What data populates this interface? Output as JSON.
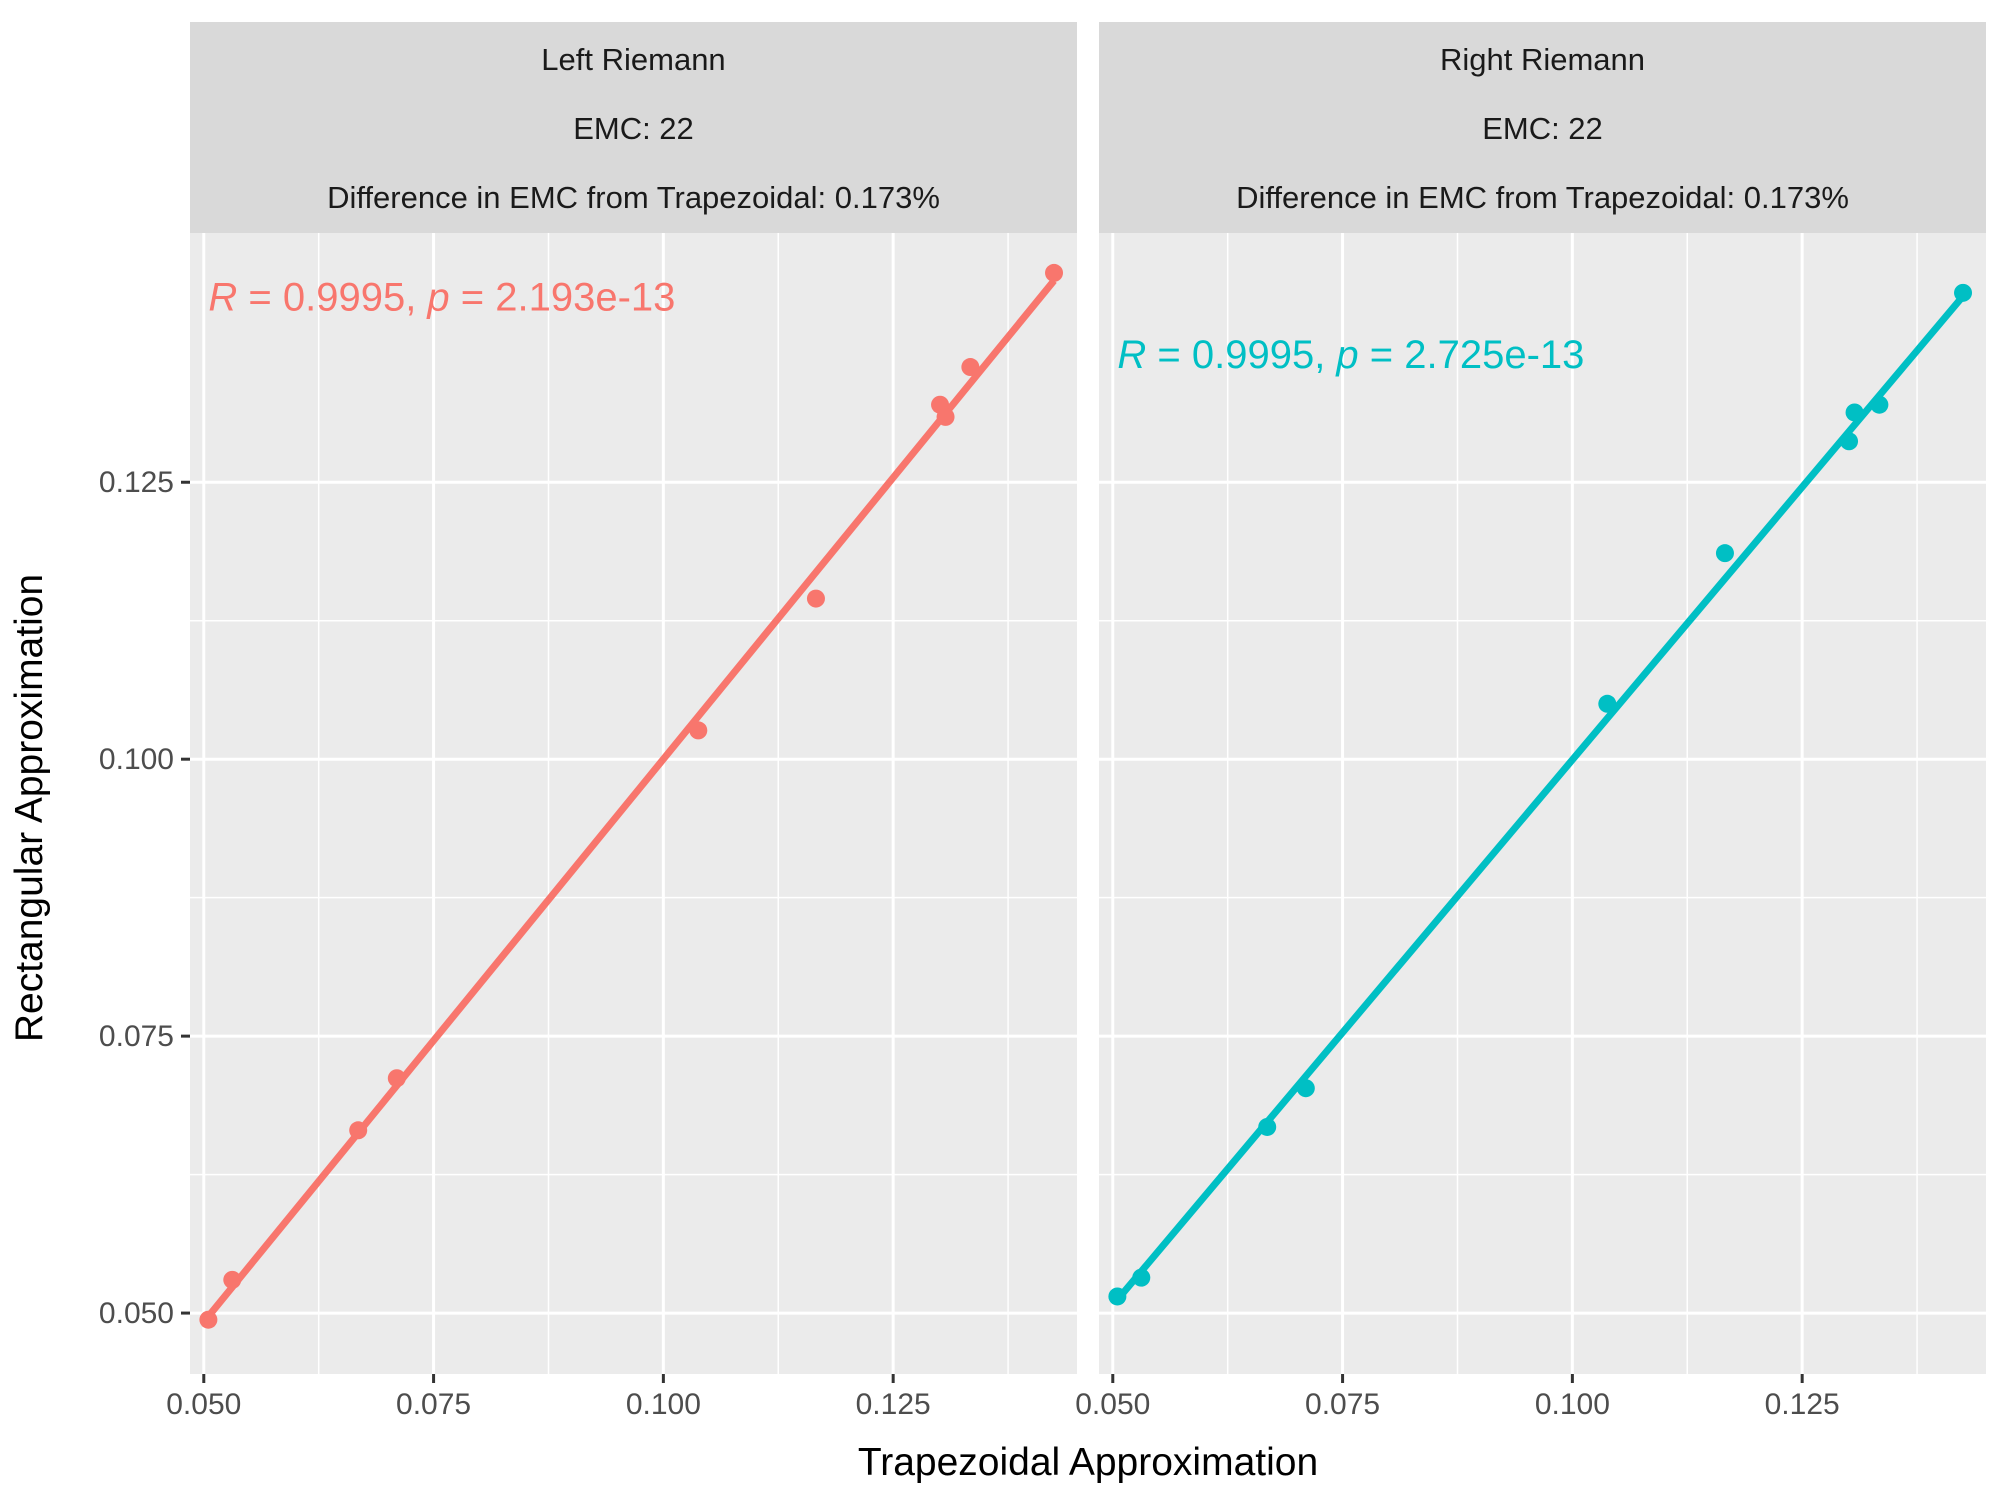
{
  "chart_data": {
    "type": "scatter",
    "xlabel": "Trapezoidal Approximation",
    "ylabel": "Rectangular Approximation",
    "xlim": [
      0.0485,
      0.145
    ],
    "ylim": [
      0.0445,
      0.1475
    ],
    "x_ticks": [
      0.05,
      0.075,
      0.1,
      0.125
    ],
    "x_tick_labels": [
      "0.050",
      "0.075",
      "0.100",
      "0.125"
    ],
    "y_ticks": [
      0.05,
      0.075,
      0.1,
      0.125
    ],
    "y_tick_labels": [
      "0.050",
      "0.075",
      "0.100",
      "0.125"
    ],
    "grid": true,
    "panels": [
      {
        "strip": [
          "Left Riemann",
          "EMC: 22",
          "Difference in EMC from Trapezoidal: 0.173%"
        ],
        "color": "#F8766D",
        "stat": {
          "r_symbol": "R",
          "r_value": " = 0.9995, ",
          "p_symbol": "p",
          "p_value": " = 2.193e-13"
        },
        "stat_anchor": [
          0.0505,
          0.1405
        ],
        "points": [
          {
            "x": 0.0505,
            "y": 0.0494
          },
          {
            "x": 0.0531,
            "y": 0.053
          },
          {
            "x": 0.0668,
            "y": 0.0665
          },
          {
            "x": 0.071,
            "y": 0.0712
          },
          {
            "x": 0.1038,
            "y": 0.1026
          },
          {
            "x": 0.1166,
            "y": 0.1145
          },
          {
            "x": 0.1301,
            "y": 0.132
          },
          {
            "x": 0.1307,
            "y": 0.1309
          },
          {
            "x": 0.1334,
            "y": 0.1354
          },
          {
            "x": 0.1425,
            "y": 0.1439
          }
        ],
        "fit": {
          "x": [
            0.0505,
            0.1425
          ],
          "y": [
            0.0497,
            0.1432
          ]
        }
      },
      {
        "strip": [
          "Right Riemann",
          "EMC: 22",
          "Difference in EMC from Trapezoidal: 0.173%"
        ],
        "color": "#00BFC4",
        "stat": {
          "r_symbol": "R",
          "r_value": " = 0.9995, ",
          "p_symbol": "p",
          "p_value": " = 2.725e-13"
        },
        "stat_anchor": [
          0.0505,
          0.1353
        ],
        "points": [
          {
            "x": 0.0505,
            "y": 0.0515
          },
          {
            "x": 0.0531,
            "y": 0.0532
          },
          {
            "x": 0.0668,
            "y": 0.0668
          },
          {
            "x": 0.071,
            "y": 0.0703
          },
          {
            "x": 0.1038,
            "y": 0.105
          },
          {
            "x": 0.1166,
            "y": 0.1186
          },
          {
            "x": 0.1301,
            "y": 0.1287
          },
          {
            "x": 0.1307,
            "y": 0.1313
          },
          {
            "x": 0.1334,
            "y": 0.132
          },
          {
            "x": 0.1425,
            "y": 0.1421
          }
        ],
        "fit": {
          "x": [
            0.0505,
            0.1425
          ],
          "y": [
            0.0512,
            0.1418
          ]
        }
      }
    ]
  }
}
